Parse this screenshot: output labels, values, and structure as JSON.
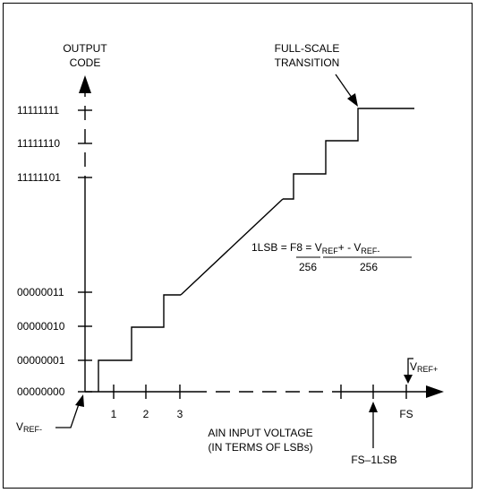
{
  "y_axis": {
    "title_lines": [
      "OUTPUT",
      "CODE"
    ],
    "codes": [
      "00000000",
      "00000001",
      "00000010",
      "00000011",
      "11111101",
      "11111110",
      "11111111"
    ]
  },
  "x_axis": {
    "ticks": [
      "1",
      "2",
      "3",
      "FS"
    ],
    "title_lines": [
      "AIN INPUT VOLTAGE",
      "(IN TERMS OF LSBs)"
    ]
  },
  "annotations": {
    "full_scale_lines": [
      "FULL-SCALE",
      "TRANSITION"
    ],
    "fs_minus_lsb": "FS–1LSB",
    "vref_minus": {
      "main": "V",
      "sub": "REF",
      "suffix": "-"
    },
    "vref_plus": {
      "main": "V",
      "sub": "REF",
      "suffix": "+"
    }
  },
  "formula": {
    "lhs": "1LSB = F8 = ",
    "num_v1": "V",
    "num_sub1": "REF",
    "num_op": "+ - ",
    "num_v2": "V",
    "num_sub2": "REF",
    "num_suffix2": "-",
    "den_left": "256",
    "den_right": "256"
  }
}
